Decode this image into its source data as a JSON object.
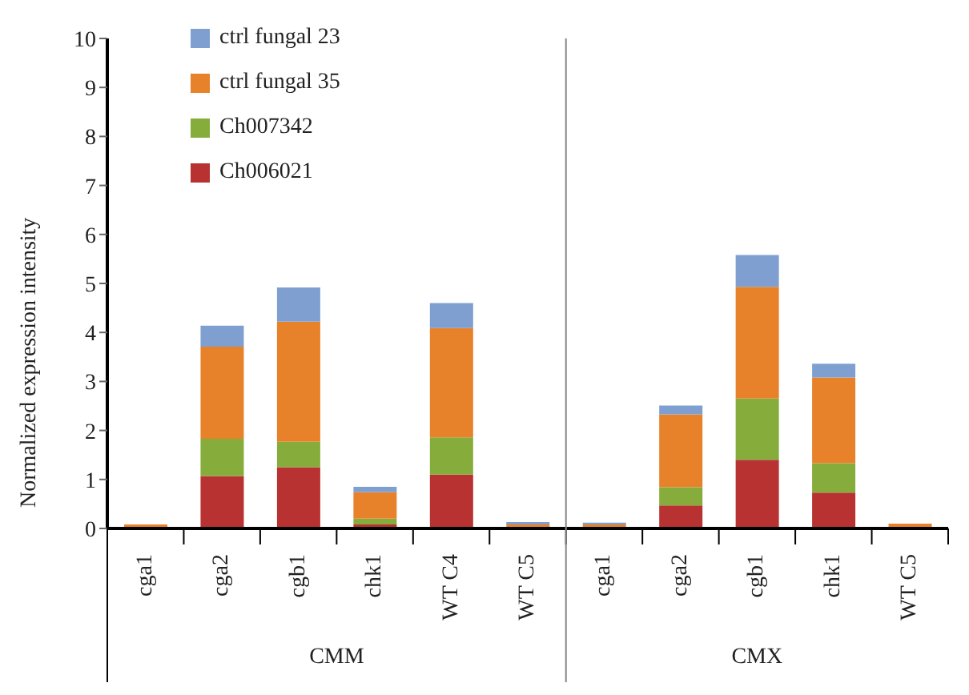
{
  "chart_data": {
    "type": "bar",
    "stacked": true,
    "ylabel": "Normalized expression intensity",
    "categories": [
      "cga1",
      "cga2",
      "cgb1",
      "chk1",
      "WT C4",
      "WT C5",
      "cga1",
      "cga2",
      "cgb1",
      "chk1",
      "WT C5"
    ],
    "series": [
      {
        "name": "Ch006021",
        "color": "#b83232",
        "values": [
          0,
          1.07,
          1.25,
          0.08,
          1.1,
          0,
          0,
          0.47,
          1.4,
          0.73,
          0
        ]
      },
      {
        "name": "Ch007342",
        "color": "#86ad3c",
        "values": [
          0,
          0.76,
          0.52,
          0.12,
          0.76,
          0,
          0,
          0.37,
          1.25,
          0.6,
          0
        ]
      },
      {
        "name": "ctrl fungal 35",
        "color": "#e8822a",
        "values": [
          0.08,
          1.88,
          2.45,
          0.54,
          2.23,
          0.08,
          0.08,
          1.49,
          2.28,
          1.75,
          0.1
        ]
      },
      {
        "name": "ctrl fungal 23",
        "color": "#7f9fd0",
        "values": [
          0,
          0.43,
          0.7,
          0.11,
          0.51,
          0.05,
          0.04,
          0.18,
          0.65,
          0.28,
          0
        ]
      }
    ],
    "ylim": [
      0,
      10
    ],
    "yticks": [
      0,
      1,
      2,
      3,
      4,
      5,
      6,
      7,
      8,
      9,
      10
    ],
    "grid": false,
    "legend": "top left",
    "annotations": [
      "CMM",
      "CMX"
    ]
  }
}
